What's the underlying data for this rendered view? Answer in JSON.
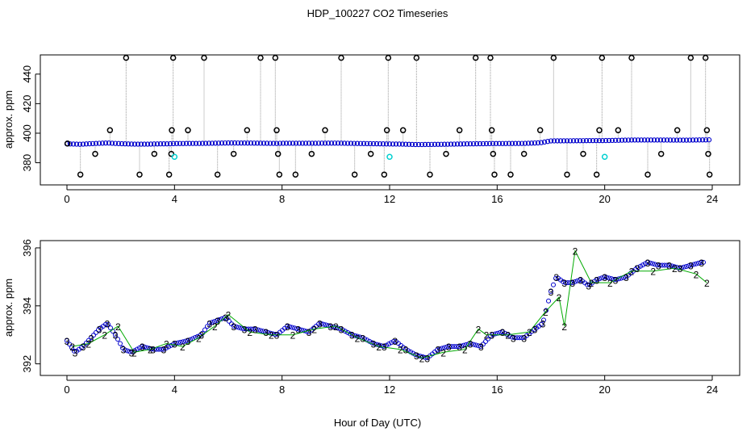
{
  "page": {
    "title": "HDP_100227  CO2 Timeseries",
    "xlabel": "Hour of Day (UTC)"
  },
  "colors": {
    "instrument_3": "#0000cc",
    "instrument_2": "#00aa00",
    "flag": "#000000",
    "cyan": "#00d0d0",
    "spike_line": "#999999"
  },
  "chart_data": [
    {
      "type": "scatter",
      "title": "",
      "xlabel": "",
      "ylabel": "approx. ppm",
      "xlim": [
        0,
        24
      ],
      "ylim": [
        365,
        453
      ],
      "xticks": [
        "0",
        "4",
        "8",
        "12",
        "16",
        "20",
        "24"
      ],
      "yticks": [
        "380",
        "400",
        "420",
        "440"
      ],
      "baseline_series": {
        "name": "",
        "x": [
          0.0,
          0.5,
          1.0,
          1.5,
          2.0,
          2.5,
          3.0,
          3.5,
          3.8,
          4.0,
          5.0,
          6.0,
          7.0,
          7.8,
          8.0,
          9.0,
          10.0,
          11.0,
          12.0,
          12.5,
          13.0,
          14.0,
          15.0,
          16.0,
          17.0,
          17.6,
          18.0,
          19.0,
          19.5,
          20.0,
          20.5,
          21.0,
          22.0,
          23.0,
          23.8
        ],
        "y": [
          392.8,
          392.5,
          393.0,
          393.4,
          392.9,
          392.6,
          392.6,
          392.8,
          392.8,
          393.0,
          393.1,
          393.4,
          393.3,
          393.1,
          393.2,
          393.2,
          393.3,
          393.0,
          392.7,
          392.6,
          392.3,
          392.5,
          392.8,
          393.0,
          393.1,
          393.5,
          394.8,
          394.9,
          395.0,
          395.0,
          395.2,
          395.4,
          395.4,
          395.3,
          395.5
        ]
      },
      "flagged_points": [
        {
          "x": 0.02,
          "y": 393
        },
        {
          "x": 0.5,
          "y": 372
        },
        {
          "x": 1.05,
          "y": 386
        },
        {
          "x": 1.6,
          "y": 402
        },
        {
          "x": 2.2,
          "y": 451
        },
        {
          "x": 2.7,
          "y": 372
        },
        {
          "x": 3.25,
          "y": 386
        },
        {
          "x": 3.8,
          "y": 372
        },
        {
          "x": 3.88,
          "y": 386
        },
        {
          "x": 3.9,
          "y": 402
        },
        {
          "x": 3.95,
          "y": 451
        },
        {
          "x": 4.5,
          "y": 402
        },
        {
          "x": 5.1,
          "y": 451
        },
        {
          "x": 5.6,
          "y": 372
        },
        {
          "x": 6.2,
          "y": 386
        },
        {
          "x": 6.7,
          "y": 402
        },
        {
          "x": 7.2,
          "y": 451
        },
        {
          "x": 7.75,
          "y": 451
        },
        {
          "x": 7.8,
          "y": 402
        },
        {
          "x": 7.85,
          "y": 386
        },
        {
          "x": 7.9,
          "y": 372
        },
        {
          "x": 8.5,
          "y": 372
        },
        {
          "x": 9.1,
          "y": 386
        },
        {
          "x": 9.6,
          "y": 402
        },
        {
          "x": 10.2,
          "y": 451
        },
        {
          "x": 10.7,
          "y": 372
        },
        {
          "x": 11.3,
          "y": 386
        },
        {
          "x": 11.8,
          "y": 372
        },
        {
          "x": 11.9,
          "y": 402
        },
        {
          "x": 11.95,
          "y": 451
        },
        {
          "x": 12.5,
          "y": 402
        },
        {
          "x": 13.0,
          "y": 451
        },
        {
          "x": 13.5,
          "y": 372
        },
        {
          "x": 14.1,
          "y": 386
        },
        {
          "x": 14.6,
          "y": 402
        },
        {
          "x": 15.2,
          "y": 451
        },
        {
          "x": 15.75,
          "y": 451
        },
        {
          "x": 15.8,
          "y": 402
        },
        {
          "x": 15.85,
          "y": 386
        },
        {
          "x": 15.9,
          "y": 372
        },
        {
          "x": 16.5,
          "y": 372
        },
        {
          "x": 17.0,
          "y": 386
        },
        {
          "x": 17.6,
          "y": 402
        },
        {
          "x": 18.1,
          "y": 451
        },
        {
          "x": 18.6,
          "y": 372
        },
        {
          "x": 19.2,
          "y": 386
        },
        {
          "x": 19.7,
          "y": 372
        },
        {
          "x": 19.8,
          "y": 402
        },
        {
          "x": 19.9,
          "y": 451
        },
        {
          "x": 20.5,
          "y": 402
        },
        {
          "x": 21.0,
          "y": 451
        },
        {
          "x": 21.6,
          "y": 372
        },
        {
          "x": 22.1,
          "y": 386
        },
        {
          "x": 22.7,
          "y": 402
        },
        {
          "x": 23.2,
          "y": 451
        },
        {
          "x": 23.75,
          "y": 451
        },
        {
          "x": 23.8,
          "y": 402
        },
        {
          "x": 23.85,
          "y": 386
        },
        {
          "x": 23.9,
          "y": 372
        }
      ],
      "cyan_points": [
        {
          "x": 4.0,
          "y": 384
        },
        {
          "x": 12.0,
          "y": 384
        },
        {
          "x": 20.0,
          "y": 384
        }
      ]
    },
    {
      "type": "scatter",
      "title": "",
      "xlabel": "Hour of Day (UTC)",
      "ylabel": "approx. ppm",
      "xlim": [
        0,
        24
      ],
      "ylim": [
        391.6,
        396.25
      ],
      "xticks": [
        "0",
        "4",
        "8",
        "12",
        "16",
        "20",
        "24"
      ],
      "yticks": [
        "392",
        "394",
        "396"
      ],
      "series": [
        {
          "name": "3",
          "x": [
            0.0,
            0.3,
            0.6,
            0.9,
            1.2,
            1.5,
            1.8,
            2.1,
            2.4,
            2.8,
            3.2,
            3.6,
            4.0,
            4.5,
            5.0,
            5.3,
            5.6,
            5.9,
            6.2,
            6.6,
            7.0,
            7.4,
            7.8,
            8.2,
            8.6,
            9.0,
            9.4,
            9.8,
            10.2,
            10.6,
            11.0,
            11.4,
            11.8,
            12.2,
            12.6,
            13.0,
            13.4,
            13.8,
            14.2,
            14.6,
            15.0,
            15.4,
            15.8,
            16.2,
            16.6,
            17.0,
            17.4,
            17.7,
            18.0,
            18.2,
            18.5,
            18.8,
            19.1,
            19.4,
            19.7,
            20.0,
            20.4,
            20.8,
            21.2,
            21.6,
            22.0,
            22.4,
            22.8,
            23.2,
            23.6
          ],
          "y": [
            392.8,
            392.4,
            392.6,
            392.9,
            393.2,
            393.4,
            393.0,
            392.5,
            392.4,
            392.6,
            392.5,
            392.5,
            392.7,
            392.8,
            393.0,
            393.4,
            393.5,
            393.6,
            393.3,
            393.2,
            393.2,
            393.1,
            393.0,
            393.3,
            393.2,
            393.1,
            393.4,
            393.3,
            393.2,
            393.0,
            392.9,
            392.7,
            392.6,
            392.8,
            392.5,
            392.3,
            392.2,
            392.5,
            392.6,
            392.6,
            392.7,
            392.6,
            393.0,
            393.1,
            392.9,
            392.9,
            393.2,
            393.4,
            394.5,
            395.0,
            394.8,
            394.8,
            394.9,
            394.7,
            394.9,
            395.0,
            394.9,
            395.0,
            395.3,
            395.5,
            395.4,
            395.4,
            395.3,
            395.4,
            395.5
          ]
        },
        {
          "name": "2",
          "x": [
            0.2,
            0.8,
            1.4,
            1.9,
            2.5,
            3.1,
            3.7,
            4.3,
            4.9,
            5.5,
            6.0,
            6.8,
            7.6,
            8.4,
            9.2,
            10.0,
            10.8,
            11.6,
            12.4,
            13.2,
            14.0,
            14.8,
            15.3,
            15.6,
            16.4,
            17.2,
            17.8,
            18.3,
            18.5,
            18.9,
            19.5,
            20.2,
            21.0,
            21.8,
            22.6,
            23.4,
            23.8
          ],
          "y": [
            392.6,
            392.7,
            393.0,
            393.3,
            392.4,
            392.5,
            392.7,
            392.6,
            392.9,
            393.3,
            393.7,
            393.1,
            393.0,
            393.0,
            393.2,
            393.3,
            392.9,
            392.6,
            392.5,
            392.2,
            392.4,
            392.5,
            393.2,
            393.0,
            393.0,
            393.1,
            393.8,
            394.3,
            393.3,
            395.9,
            394.8,
            394.8,
            395.2,
            395.2,
            395.3,
            395.1,
            394.8
          ]
        }
      ]
    }
  ]
}
